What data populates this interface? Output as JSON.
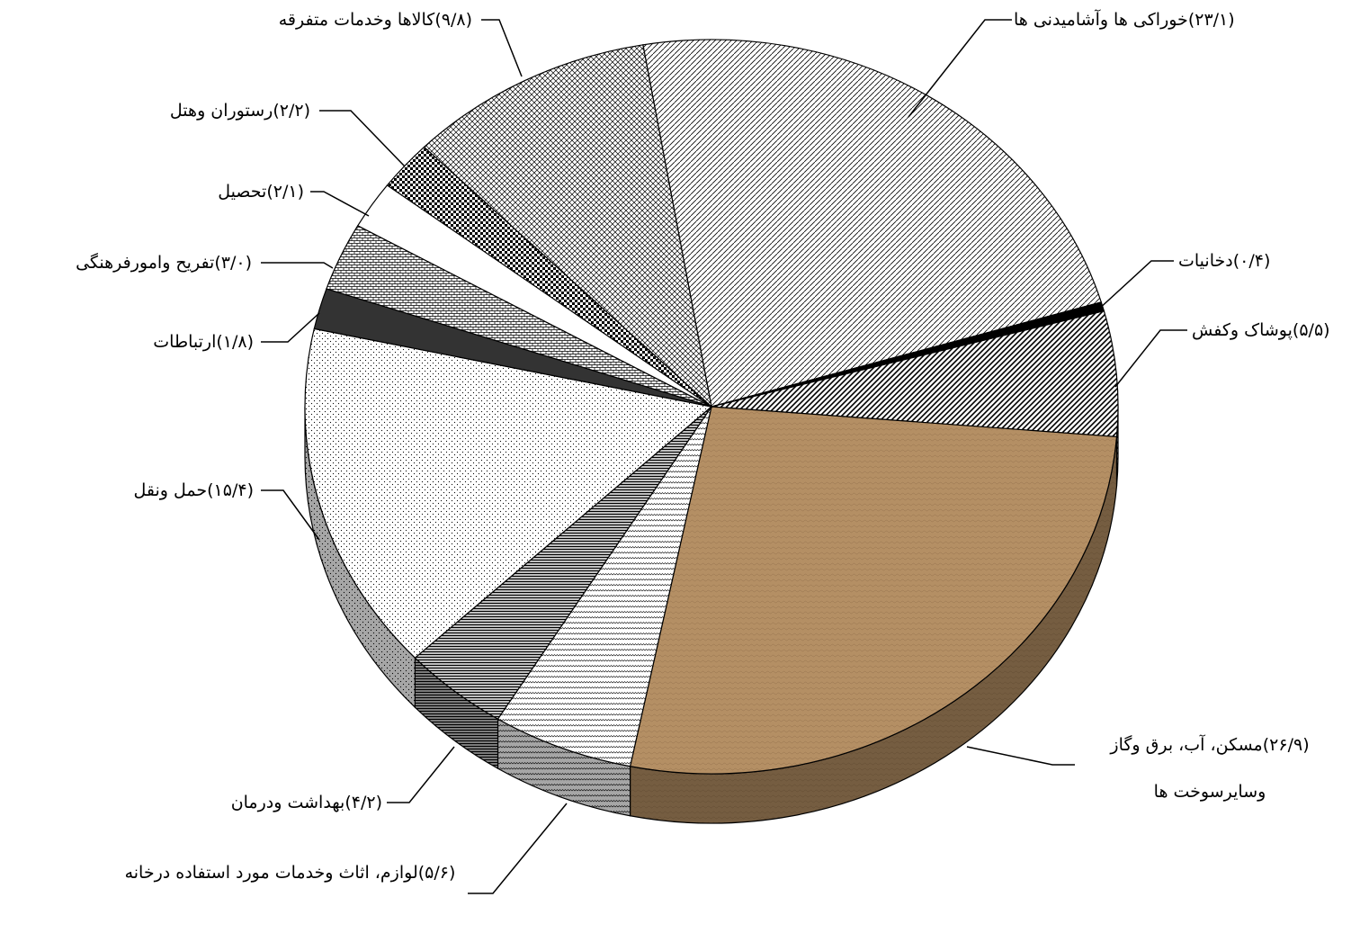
{
  "chart_data": {
    "type": "pie",
    "categories": [
      "خوراکی ها وآشامیدنی ها",
      "دخانیات",
      "پوشاک وکفش",
      "مسکن، آب، برق وگاز وسایرسوخت ها",
      "لوازم، اثاث وخدمات مورد استفاده درخانه",
      "بهداشت ودرمان",
      "حمل ونقل",
      "ارتباطات",
      "تفریح وامورفرهنگی",
      "تحصیل",
      "رستوران وهتل",
      "کالاها وخدمات متفرقه"
    ],
    "values": [
      23.1,
      0.4,
      5.5,
      26.9,
      5.6,
      4.2,
      15.4,
      1.8,
      3.0,
      2.1,
      2.2,
      9.8
    ],
    "value_labels": [
      "(۲۳/۱)",
      "(۰/۴)",
      "(۵/۵)",
      "(۲۶/۹)",
      "(۵/۶)",
      "(۴/۲)",
      "(۱۵/۴)",
      "(۱/۸)",
      "(۳/۰)",
      "(۲/۱)",
      "(۲/۲)",
      "(۹/۸)"
    ],
    "colors": [
      "#ffffff",
      "#000000",
      "#ffffff",
      "#b48f64",
      "#ffffff",
      "#ffffff",
      "#ffffff",
      "#333333",
      "#ffffff",
      "#ffffff",
      "#ffffff",
      "#ffffff"
    ]
  }
}
